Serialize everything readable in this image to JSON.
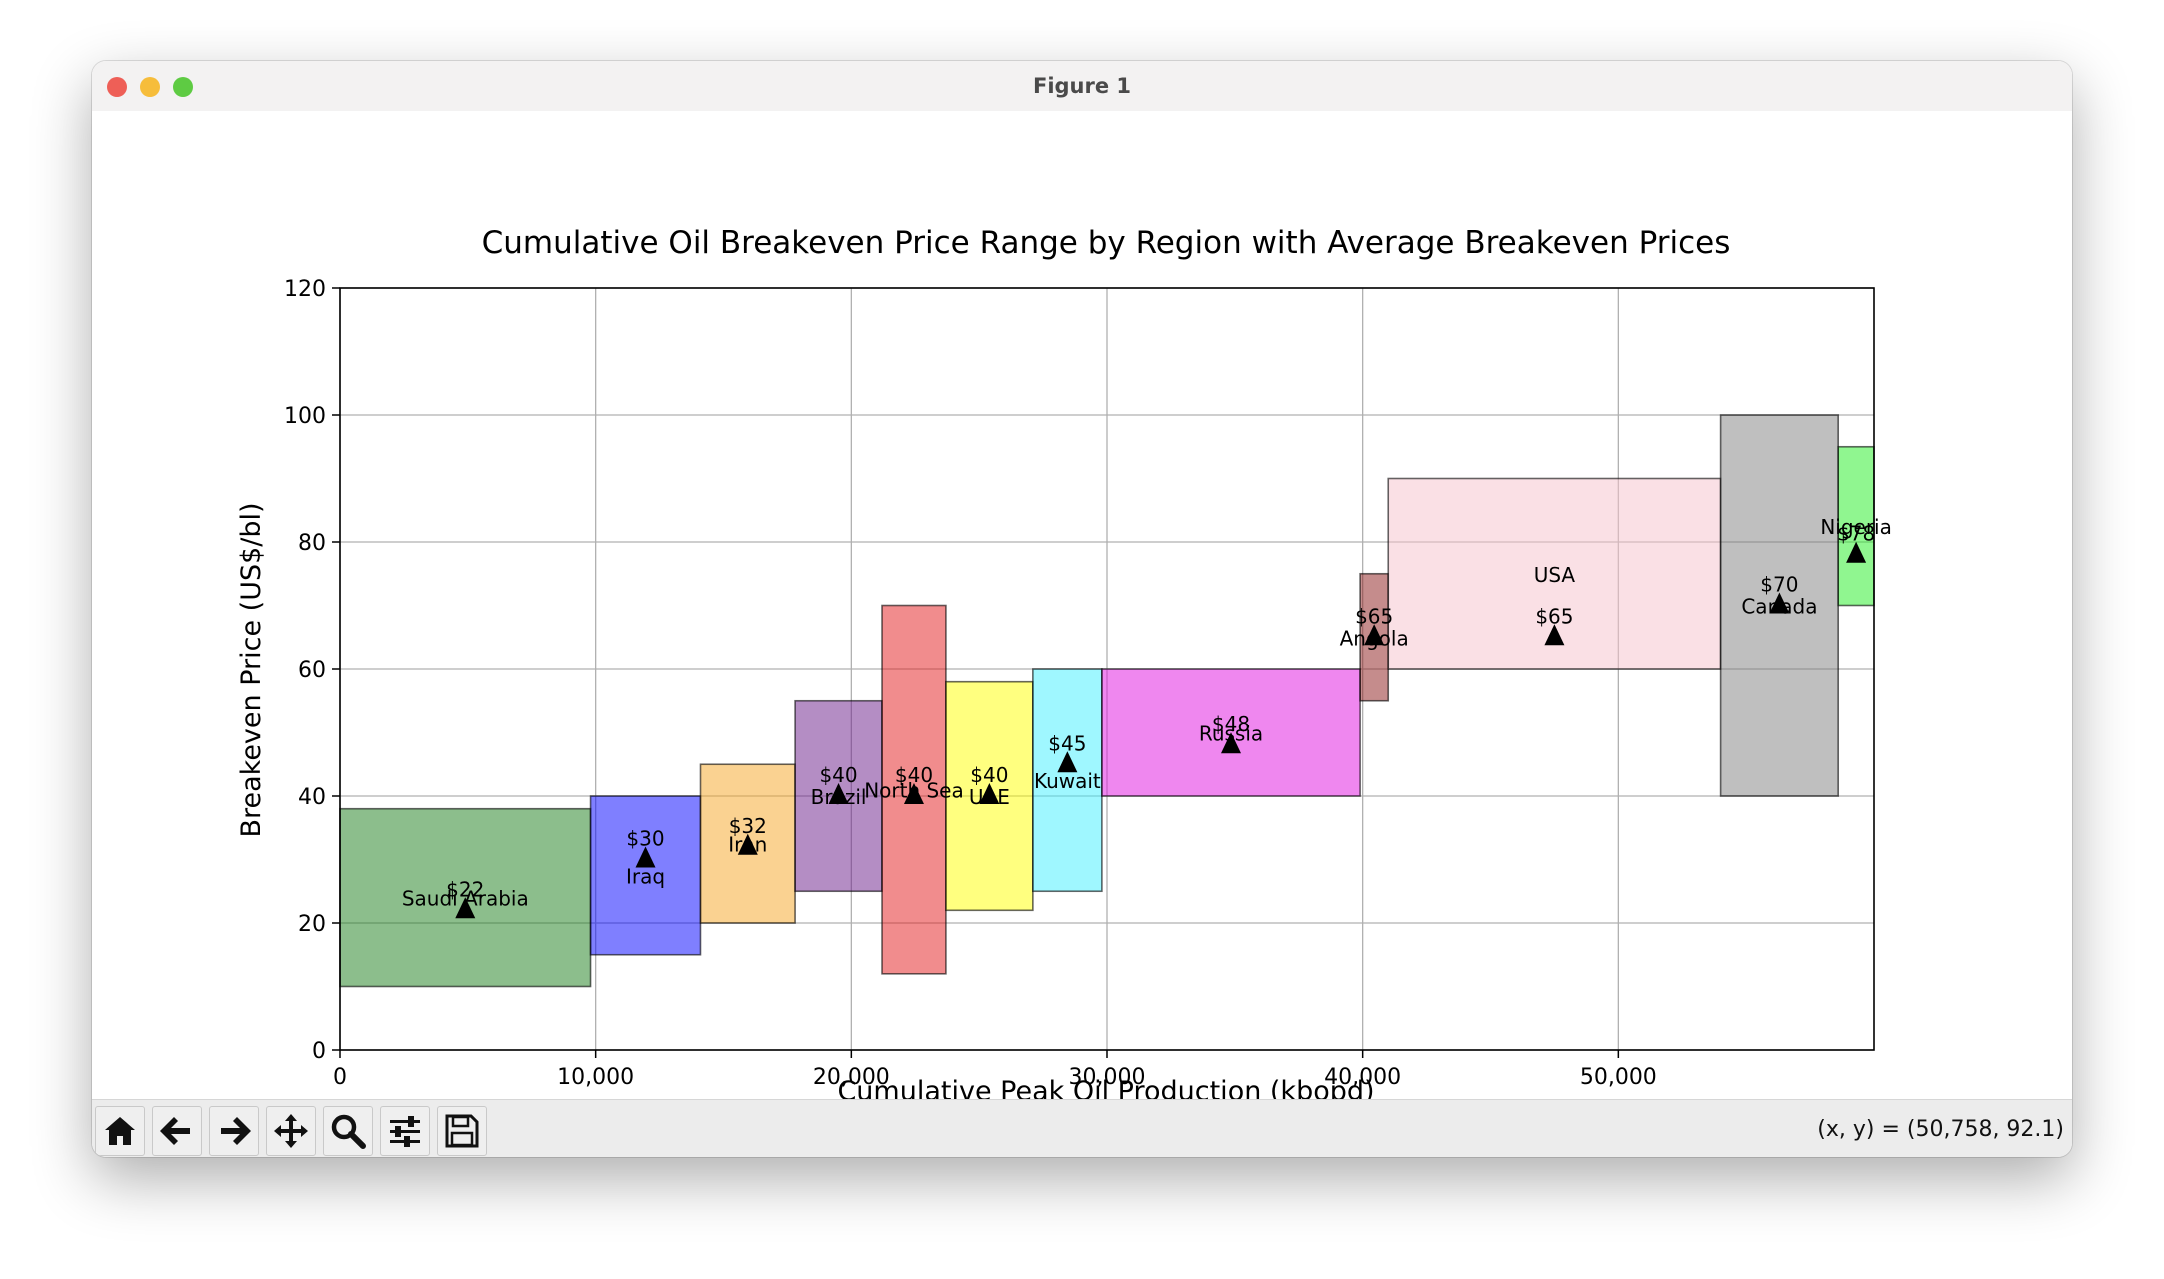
{
  "window": {
    "title": "Figure 1"
  },
  "toolbar": {
    "buttons": [
      {
        "name": "home-button",
        "icon": "home-icon"
      },
      {
        "name": "back-button",
        "icon": "arrow-left-icon"
      },
      {
        "name": "forward-button",
        "icon": "arrow-right-icon"
      },
      {
        "name": "pan-button",
        "icon": "move-icon"
      },
      {
        "name": "zoom-button",
        "icon": "magnifier-icon"
      },
      {
        "name": "configure-subplots-button",
        "icon": "sliders-icon"
      },
      {
        "name": "save-button",
        "icon": "floppy-disk-icon"
      }
    ],
    "coords_text": "(x, y) = (50,758, 92.1)"
  },
  "chart_data": {
    "type": "bar",
    "title": "Cumulative Oil Breakeven Price Range by Region with Average Breakeven Prices",
    "xlabel": "Cumulative Peak Oil Production (kbopd)",
    "ylabel": "Breakeven Price (US$/bl)",
    "xlim": [
      0,
      60000
    ],
    "ylim": [
      0,
      120
    ],
    "xticks": [
      0,
      10000,
      20000,
      30000,
      40000,
      50000
    ],
    "xtick_labels": [
      "0",
      "10,000",
      "20,000",
      "30,000",
      "40,000",
      "50,000"
    ],
    "yticks": [
      0,
      20,
      40,
      60,
      80,
      100,
      120
    ],
    "ytick_labels": [
      "0",
      "20",
      "40",
      "60",
      "80",
      "100",
      "120"
    ],
    "grid": true,
    "bars": [
      {
        "region": "Saudi Arabia",
        "x_start": 0,
        "x_end": 9800,
        "low": 10,
        "high": 38,
        "avg": 22,
        "avg_label": "$22",
        "color": "#1a7d1a"
      },
      {
        "region": "Iraq",
        "x_start": 9800,
        "x_end": 14100,
        "low": 15,
        "high": 40,
        "avg": 30,
        "avg_label": "$30",
        "color": "#0000ff"
      },
      {
        "region": "Iran",
        "x_start": 14100,
        "x_end": 17800,
        "low": 20,
        "high": 45,
        "avg": 32,
        "avg_label": "$32",
        "color": "#f5a623"
      },
      {
        "region": "Brazil",
        "x_start": 17800,
        "x_end": 21200,
        "low": 25,
        "high": 55,
        "avg": 40,
        "avg_label": "$40",
        "color": "#6a1b8a"
      },
      {
        "region": "North Sea",
        "x_start": 21200,
        "x_end": 23700,
        "low": 12,
        "high": 70,
        "avg": 40,
        "avg_label": "$40",
        "color": "#e31a1c"
      },
      {
        "region": "UAE",
        "x_start": 23700,
        "x_end": 27100,
        "low": 22,
        "high": 58,
        "avg": 40,
        "avg_label": "$40",
        "color": "#ffff00"
      },
      {
        "region": "Kuwait",
        "x_start": 27100,
        "x_end": 29800,
        "low": 25,
        "high": 60,
        "avg": 45,
        "avg_label": "$45",
        "color": "#40f0ff"
      },
      {
        "region": "Russia",
        "x_start": 29800,
        "x_end": 39900,
        "low": 40,
        "high": 60,
        "avg": 48,
        "avg_label": "$48",
        "color": "#e010e0"
      },
      {
        "region": "Angola",
        "x_start": 39900,
        "x_end": 41000,
        "low": 55,
        "high": 75,
        "avg": 65,
        "avg_label": "$65",
        "color": "#8b1a1a"
      },
      {
        "region": "USA",
        "x_start": 41000,
        "x_end": 54000,
        "low": 60,
        "high": 90,
        "avg": 65,
        "avg_label": "$65",
        "color": "#f5c2cb"
      },
      {
        "region": "Canada",
        "x_start": 54000,
        "x_end": 58600,
        "low": 40,
        "high": 100,
        "avg": 70,
        "avg_label": "$70",
        "color": "#808080"
      },
      {
        "region": "Nigeria",
        "x_start": 58600,
        "x_end": 60000,
        "low": 70,
        "high": 95,
        "avg": 78,
        "avg_label": "$78",
        "color": "#22ee22"
      }
    ]
  }
}
